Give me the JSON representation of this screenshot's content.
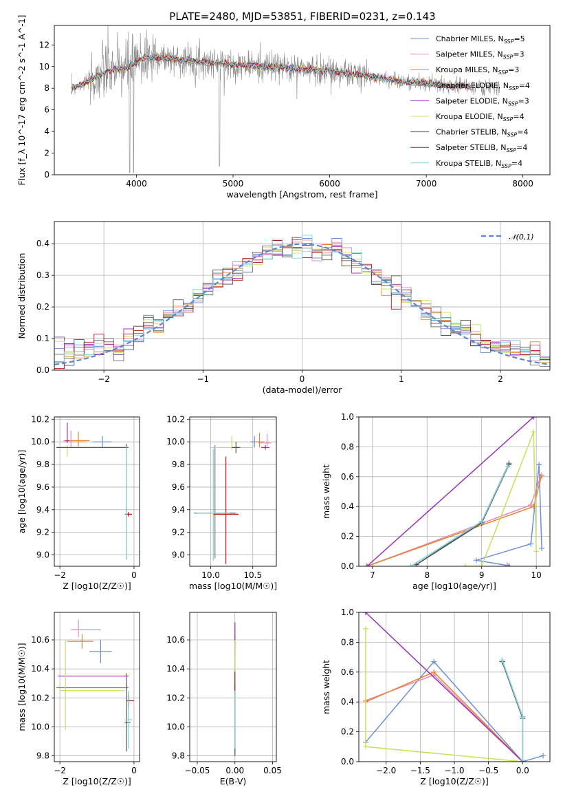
{
  "figure": {
    "title": "PLATE=2480, MJD=53851, FIBERID=0231, z=0.143"
  },
  "colors": {
    "chabrier_miles": "#6a8fdc",
    "salpeter_miles": "#e38ab2",
    "kroupa_miles": "#e8822e",
    "chabrier_elodie": "#777777",
    "salpeter_elodie": "#9b30b8",
    "kroupa_elodie": "#c8e05a",
    "chabrier_stelib": "#555555",
    "salpeter_stelib": "#b01818",
    "kroupa_stelib": "#7dd4dc",
    "spectrum": "#8a8a8a",
    "grid": "#b0b0b0"
  },
  "chart_data": [
    {
      "id": "spectrum",
      "type": "line",
      "title": "PLATE=2480, MJD=53851, FIBERID=0231, z=0.143",
      "xlabel": "wavelength [Angstrom, rest frame]",
      "ylabel": "Flux [f_λ 10^-17 erg cm^-2 s^-1 A^-1]",
      "xlim": [
        3150,
        8280
      ],
      "ylim": [
        0,
        13.8
      ],
      "xticks": [
        4000,
        5000,
        6000,
        7000,
        8000
      ],
      "yticks": [
        0,
        2,
        4,
        6,
        8,
        10,
        12
      ],
      "grid": false,
      "legend_position": "upper-right",
      "legend": [
        "Chabrier MILES, N_SSP=5",
        "Salpeter MILES, N_SSP=3",
        "Kroupa MILES, N_SSP=3",
        "Chabrier ELODIE, N_SSP=4",
        "Salpeter ELODIE, N_SSP=3",
        "Kroupa ELODIE, N_SSP=4",
        "Chabrier STELIB, N_SSP=4",
        "Salpeter STELIB, N_SSP=4",
        "Kroupa STELIB, N_SSP=4"
      ],
      "data_range": [
        3330,
        7760
      ],
      "continuum_anchors": [
        [
          3330,
          8.0
        ],
        [
          3500,
          8.6
        ],
        [
          3700,
          9.6
        ],
        [
          3900,
          9.9
        ],
        [
          4100,
          10.9
        ],
        [
          4300,
          10.8
        ],
        [
          4500,
          10.6
        ],
        [
          5000,
          10.2
        ],
        [
          5500,
          9.9
        ],
        [
          6000,
          9.6
        ],
        [
          6400,
          9.1
        ],
        [
          6800,
          8.6
        ],
        [
          7200,
          8.3
        ],
        [
          7500,
          8.1
        ],
        [
          7760,
          8.0
        ]
      ]
    },
    {
      "id": "residuals",
      "type": "histogram",
      "xlabel": "(data-model)/error",
      "ylabel": "Normed distribution",
      "xlim": [
        -2.5,
        2.5
      ],
      "ylim": [
        0,
        0.47
      ],
      "xticks": [
        -2,
        -1,
        0,
        1,
        2
      ],
      "yticks": [
        0.0,
        0.1,
        0.2,
        0.3,
        0.4
      ],
      "grid": true,
      "legend_position": "upper-right",
      "legend": [
        "𝒩(0,1)"
      ],
      "bin_width": 0.1,
      "bin_start": -2.5
    },
    {
      "id": "age_vs_Z",
      "type": "errorbar",
      "xlabel": "Z [log10(Z/Z☉)]",
      "ylabel": "age  [log10(age/yr)]",
      "xlim": [
        -2.15,
        0.15
      ],
      "ylim": [
        8.9,
        10.22
      ],
      "xticks": [
        -2,
        0
      ],
      "yticks": [
        9.0,
        9.2,
        9.4,
        9.6,
        9.8,
        10.0,
        10.2
      ],
      "grid": true,
      "points": [
        {
          "model": "chabrier_miles",
          "x": -0.85,
          "y": 10.0,
          "xerr": [
            0.25,
            0.25
          ],
          "yerr": [
            0.05,
            0.05
          ]
        },
        {
          "model": "salpeter_miles",
          "x": -1.7,
          "y": 10.0,
          "xerr": [
            0.2,
            0.4
          ],
          "yerr": [
            0.05,
            0.1
          ]
        },
        {
          "model": "kroupa_miles",
          "x": -1.5,
          "y": 10.01,
          "xerr": [
            0.4,
            0.3
          ],
          "yerr": [
            0.05,
            0.08
          ]
        },
        {
          "model": "chabrier_elodie",
          "x": -0.2,
          "y": 9.36,
          "xerr": [
            0.05,
            0.1
          ],
          "yerr": [
            0.4,
            0.6
          ]
        },
        {
          "model": "salpeter_elodie",
          "x": -1.8,
          "y": 10.01,
          "xerr": [
            0.05,
            0.05
          ],
          "yerr": [
            0.02,
            0.16
          ]
        },
        {
          "model": "kroupa_elodie",
          "x": -1.8,
          "y": 9.95,
          "xerr": [
            0.25,
            1.55
          ],
          "yerr": [
            0.08,
            0.02
          ]
        },
        {
          "model": "chabrier_stelib",
          "x": -0.2,
          "y": 9.95,
          "xerr": [
            1.9,
            0.05
          ],
          "yerr": [
            0.03,
            0.03
          ]
        },
        {
          "model": "salpeter_stelib",
          "x": -0.15,
          "y": 9.36,
          "xerr": [
            0.05,
            0.1
          ],
          "yerr": [
            0.02,
            0.02
          ]
        },
        {
          "model": "kroupa_stelib",
          "x": -0.2,
          "y": 9.4,
          "xerr": [
            0.03,
            0.03
          ],
          "yerr": [
            0.44,
            0.56
          ]
        }
      ]
    },
    {
      "id": "age_vs_mass",
      "type": "errorbar",
      "xlabel": "mass [log10(M/M☉)]",
      "ylabel": "",
      "xlim": [
        9.75,
        10.78
      ],
      "ylim": [
        8.9,
        10.22
      ],
      "xticks": [
        10.0,
        10.5
      ],
      "yticks": [
        9.0,
        9.2,
        9.4,
        9.6,
        9.8,
        10.0,
        10.2
      ],
      "grid": true,
      "points": [
        {
          "model": "chabrier_miles",
          "x": 10.52,
          "y": 10.0,
          "xerr": [
            0.05,
            0.05
          ],
          "yerr": [
            0.05,
            0.05
          ]
        },
        {
          "model": "salpeter_miles",
          "x": 10.67,
          "y": 9.99,
          "xerr": [
            0.1,
            0.05
          ],
          "yerr": [
            0.03,
            0.08
          ]
        },
        {
          "model": "kroupa_miles",
          "x": 10.58,
          "y": 10.0,
          "xerr": [
            0.05,
            0.05
          ],
          "yerr": [
            0.05,
            0.08
          ]
        },
        {
          "model": "chabrier_elodie",
          "x": 10.05,
          "y": 9.37,
          "xerr": [
            0.25,
            0.25
          ],
          "yerr": [
            0.4,
            0.6
          ]
        },
        {
          "model": "salpeter_elodie",
          "x": 10.65,
          "y": 9.95,
          "xerr": [
            0.05,
            0.05
          ],
          "yerr": [
            0.02,
            0.02
          ]
        },
        {
          "model": "kroupa_elodie",
          "x": 10.25,
          "y": 9.95,
          "xerr": [
            0.25,
            0.25
          ],
          "yerr": [
            0.02,
            0.1
          ]
        },
        {
          "model": "chabrier_stelib",
          "x": 10.3,
          "y": 9.95,
          "xerr": [
            0.05,
            0.05
          ],
          "yerr": [
            0.05,
            0.05
          ]
        },
        {
          "model": "salpeter_stelib",
          "x": 10.18,
          "y": 9.36,
          "xerr": [
            0.15,
            0.15
          ],
          "yerr": [
            0.44,
            0.51
          ]
        },
        {
          "model": "kroupa_stelib",
          "x": 10.03,
          "y": 9.37,
          "xerr": [
            0.2,
            0.2
          ],
          "yerr": [
            0.42,
            0.57
          ]
        }
      ]
    },
    {
      "id": "weight_vs_age",
      "type": "line",
      "xlabel": "age  [log10(age/yr)]",
      "ylabel": "mass weight",
      "xlim": [
        6.75,
        10.25
      ],
      "ylim": [
        0,
        1.0
      ],
      "xticks": [
        7,
        8,
        9,
        10
      ],
      "yticks": [
        0.0,
        0.2,
        0.4,
        0.6,
        0.8,
        1.0
      ],
      "grid": true,
      "series": [
        {
          "model": "chabrier_miles",
          "points": [
            [
              9.47,
              0.005
            ],
            [
              8.9,
              0.04
            ],
            [
              9.9,
              0.15
            ],
            [
              10.05,
              0.68
            ],
            [
              10.1,
              0.12
            ]
          ]
        },
        {
          "model": "salpeter_miles",
          "points": [
            [
              6.9,
              0.0
            ],
            [
              9.9,
              0.41
            ],
            [
              10.08,
              0.6
            ]
          ]
        },
        {
          "model": "kroupa_miles",
          "points": [
            [
              6.9,
              0.0
            ],
            [
              9.95,
              0.4
            ],
            [
              10.1,
              0.61
            ]
          ]
        },
        {
          "model": "chabrier_elodie",
          "points": [
            [
              7.8,
              0.01
            ],
            [
              9.0,
              0.3
            ],
            [
              9.5,
              0.69
            ]
          ]
        },
        {
          "model": "salpeter_elodie",
          "points": [
            [
              6.9,
              0.0
            ],
            [
              9.95,
              1.0
            ]
          ]
        },
        {
          "model": "kroupa_elodie",
          "points": [
            [
              8.7,
              0.0
            ],
            [
              9.0,
              0.0
            ],
            [
              9.95,
              0.9
            ],
            [
              10.0,
              0.1
            ]
          ]
        },
        {
          "model": "chabrier_stelib",
          "points": [
            [
              7.8,
              0.01
            ],
            [
              9.0,
              0.29
            ],
            [
              9.5,
              0.68
            ]
          ]
        },
        {
          "model": "salpeter_stelib",
          "points": [
            [
              9.5,
              0.0
            ]
          ]
        },
        {
          "model": "kroupa_stelib",
          "points": [
            [
              7.7,
              0.0
            ],
            [
              9.0,
              0.3
            ],
            [
              9.48,
              0.67
            ]
          ]
        }
      ]
    },
    {
      "id": "mass_vs_Z",
      "type": "errorbar",
      "xlabel": "Z [log10(Z/Z☉)]",
      "ylabel": "mass [log10(M/M☉)]",
      "xlim": [
        -2.15,
        0.15
      ],
      "ylim": [
        9.76,
        10.79
      ],
      "xticks": [
        -2,
        0
      ],
      "yticks": [
        9.8,
        10.0,
        10.2,
        10.4,
        10.6
      ],
      "grid": true,
      "points": [
        {
          "model": "chabrier_miles",
          "x": -0.9,
          "y": 10.52,
          "xerr": [
            0.3,
            0.3
          ],
          "yerr": [
            0.08,
            0.08
          ]
        },
        {
          "model": "salpeter_miles",
          "x": -1.5,
          "y": 10.67,
          "xerr": [
            0.2,
            0.6
          ],
          "yerr": [
            0.05,
            0.07
          ]
        },
        {
          "model": "kroupa_miles",
          "x": -1.4,
          "y": 10.59,
          "xerr": [
            0.4,
            0.3
          ],
          "yerr": [
            0.05,
            0.05
          ]
        },
        {
          "model": "chabrier_elodie",
          "x": -0.2,
          "y": 10.27,
          "xerr": [
            1.9,
            0.05
          ],
          "yerr": [
            0.02,
            0.02
          ]
        },
        {
          "model": "salpeter_elodie",
          "x": -0.2,
          "y": 10.35,
          "xerr": [
            1.85,
            0.05
          ],
          "yerr": [
            0.02,
            0.02
          ]
        },
        {
          "model": "kroupa_elodie",
          "x": -1.85,
          "y": 10.25,
          "xerr": [
            0.15,
            1.6
          ],
          "yerr": [
            0.27,
            0.35
          ]
        },
        {
          "model": "chabrier_stelib",
          "x": -0.2,
          "y": 10.03,
          "xerr": [
            0.05,
            0.1
          ],
          "yerr": [
            0.2,
            0.3
          ]
        },
        {
          "model": "salpeter_stelib",
          "x": -0.15,
          "y": 10.18,
          "xerr": [
            0.05,
            0.15
          ],
          "yerr": [
            0.05,
            0.05
          ]
        },
        {
          "model": "kroupa_stelib",
          "x": -0.15,
          "y": 10.05,
          "xerr": [
            0.1,
            0.1
          ],
          "yerr": [
            0.2,
            0.2
          ]
        }
      ]
    },
    {
      "id": "mass_vs_ebv",
      "type": "errorbar",
      "xlabel": "E(B-V)",
      "ylabel": "",
      "xlim": [
        -0.06,
        0.055
      ],
      "ylim": [
        9.76,
        10.79
      ],
      "xticks": [
        -0.05,
        0.0,
        0.05
      ],
      "yticks": [
        9.8,
        10.0,
        10.2,
        10.4,
        10.6
      ],
      "grid": true,
      "points": [
        {
          "model": "chabrier_miles",
          "x": 0.0,
          "y": 10.52,
          "xerr": [
            0,
            0
          ],
          "yerr": [
            0.05,
            0.05
          ]
        },
        {
          "model": "salpeter_miles",
          "x": 0.0,
          "y": 10.67,
          "xerr": [
            0,
            0
          ],
          "yerr": [
            0.05,
            0.05
          ]
        },
        {
          "model": "kroupa_miles",
          "x": 0.0,
          "y": 10.59,
          "xerr": [
            0,
            0
          ],
          "yerr": [
            0.05,
            0.05
          ]
        },
        {
          "model": "chabrier_elodie",
          "x": 0.0,
          "y": 10.27,
          "xerr": [
            0,
            0
          ],
          "yerr": [
            0.45,
            0.35
          ]
        },
        {
          "model": "salpeter_elodie",
          "x": 0.0,
          "y": 10.6,
          "xerr": [
            0,
            0
          ],
          "yerr": [
            0.1,
            0.12
          ]
        },
        {
          "model": "kroupa_elodie",
          "x": 0.0,
          "y": 10.4,
          "xerr": [
            0,
            0
          ],
          "yerr": [
            0.3,
            0.2
          ]
        },
        {
          "model": "chabrier_stelib",
          "x": 0.0,
          "y": 10.1,
          "xerr": [
            0,
            0
          ],
          "yerr": [
            0.3,
            0.2
          ]
        },
        {
          "model": "salpeter_stelib",
          "x": 0.0,
          "y": 10.3,
          "xerr": [
            0,
            0
          ],
          "yerr": [
            0.08,
            0.08
          ]
        },
        {
          "model": "kroupa_stelib",
          "x": 0.0,
          "y": 10.05,
          "xerr": [
            0,
            0
          ],
          "yerr": [
            0.2,
            0.2
          ]
        }
      ]
    },
    {
      "id": "weight_vs_Z",
      "type": "line",
      "xlabel": "Z [log10(Z/Z☉)]",
      "ylabel": "mass weight",
      "xlim": [
        -2.4,
        0.4
      ],
      "ylim": [
        0,
        1.0
      ],
      "xticks": [
        -2.0,
        -1.5,
        -1.0,
        -0.5,
        0.0
      ],
      "yticks": [
        0.0,
        0.2,
        0.4,
        0.6,
        0.8,
        1.0
      ],
      "grid": true,
      "series": [
        {
          "model": "chabrier_miles",
          "points": [
            [
              -2.3,
              0.13
            ],
            [
              -1.3,
              0.67
            ],
            [
              0.0,
              0.0
            ],
            [
              0.3,
              0.04
            ]
          ]
        },
        {
          "model": "salpeter_miles",
          "points": [
            [
              -2.3,
              0.41
            ],
            [
              -1.3,
              0.58
            ],
            [
              0.0,
              0.0
            ]
          ]
        },
        {
          "model": "kroupa_miles",
          "points": [
            [
              -2.3,
              0.4
            ],
            [
              -1.3,
              0.6
            ],
            [
              0.0,
              0.0
            ]
          ]
        },
        {
          "model": "chabrier_elodie",
          "points": [
            [
              -0.3,
              0.68
            ],
            [
              0.0,
              0.3
            ],
            [
              0.0,
              0.0
            ]
          ]
        },
        {
          "model": "salpeter_elodie",
          "points": [
            [
              -2.3,
              1.0
            ],
            [
              0.0,
              0.0
            ]
          ]
        },
        {
          "model": "kroupa_elodie",
          "points": [
            [
              -2.3,
              0.89
            ],
            [
              -2.3,
              0.1
            ],
            [
              0.0,
              0.0
            ]
          ]
        },
        {
          "model": "chabrier_stelib",
          "points": [
            [
              -0.3,
              0.67
            ],
            [
              0.0,
              0.29
            ],
            [
              0.0,
              0.0
            ]
          ]
        },
        {
          "model": "salpeter_stelib",
          "points": [
            [
              0.0,
              0.0
            ]
          ]
        },
        {
          "model": "kroupa_stelib",
          "points": [
            [
              -0.3,
              0.68
            ],
            [
              0.0,
              0.3
            ],
            [
              0.0,
              0.01
            ]
          ]
        }
      ]
    }
  ]
}
